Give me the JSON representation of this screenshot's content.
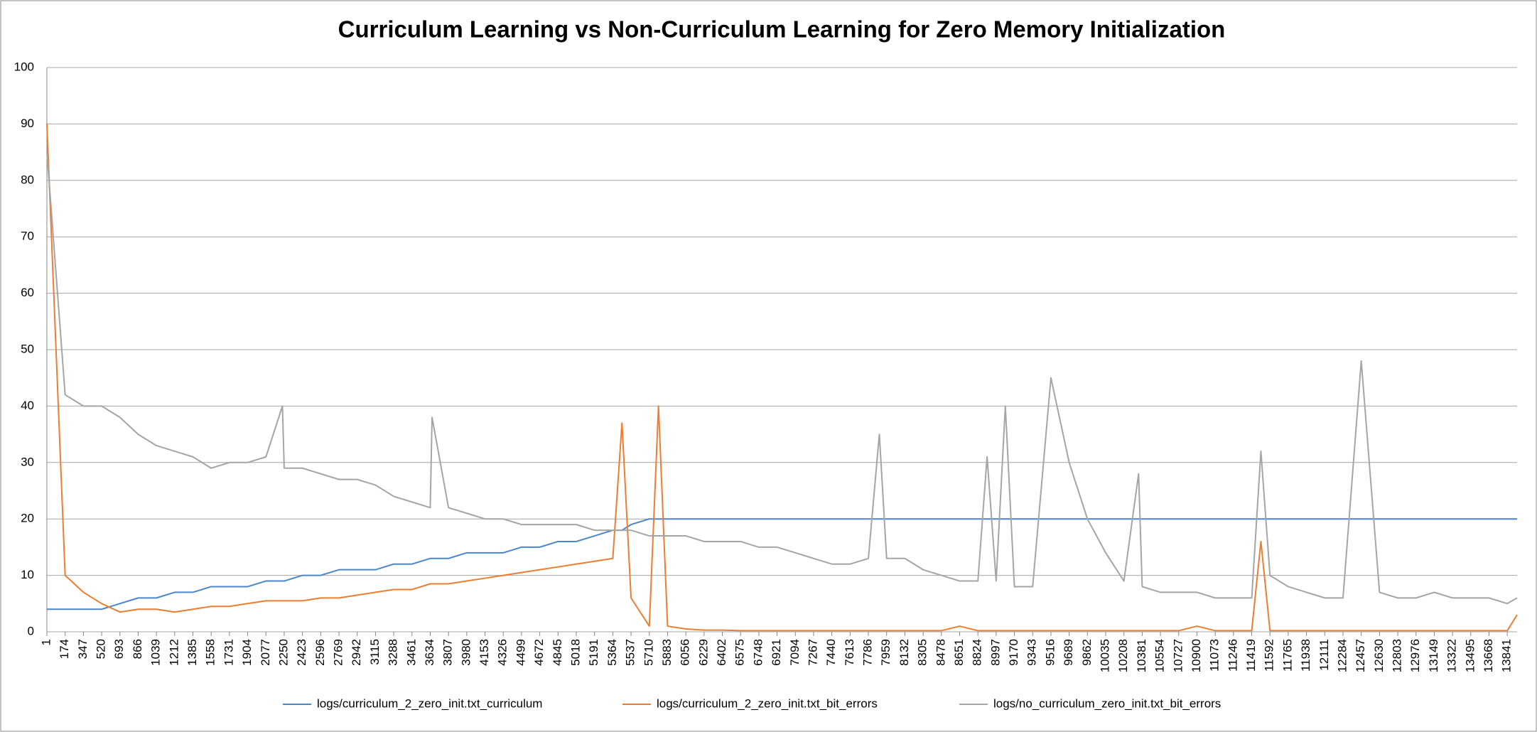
{
  "chart_data": {
    "type": "line",
    "title": "Curriculum Learning vs Non-Curriculum Learning for Zero Memory Initialization",
    "x": [
      1,
      174,
      347,
      520,
      693,
      866,
      1039,
      1212,
      1385,
      1558,
      1731,
      1904,
      2077,
      2233,
      2250,
      2423,
      2596,
      2769,
      2942,
      3115,
      3288,
      3461,
      3634,
      3651,
      3807,
      3980,
      4153,
      4326,
      4499,
      4672,
      4845,
      5018,
      5191,
      5364,
      5451,
      5537,
      5710,
      5797,
      5883,
      6056,
      6229,
      6402,
      6575,
      6748,
      6921,
      7094,
      7267,
      7440,
      7613,
      7786,
      7890,
      7959,
      8132,
      8305,
      8478,
      8651,
      8824,
      8911,
      8997,
      9084,
      9170,
      9343,
      9516,
      9689,
      9862,
      10035,
      10208,
      10347,
      10381,
      10554,
      10727,
      10900,
      11073,
      11246,
      11419,
      11506,
      11592,
      11765,
      11938,
      12111,
      12284,
      12457,
      12630,
      12803,
      12976,
      13149,
      13322,
      13495,
      13668,
      13841,
      13934
    ],
    "series": [
      {
        "name": "logs/curriculum_2_zero_init.txt_curriculum",
        "color": "#4a86c8",
        "values": [
          4,
          4,
          4,
          4,
          5,
          6,
          6,
          7,
          7,
          8,
          8,
          8,
          9,
          9,
          9,
          10,
          10,
          11,
          11,
          11,
          12,
          12,
          13,
          13,
          13,
          14,
          14,
          14,
          15,
          15,
          16,
          16,
          17,
          18,
          18,
          19,
          20,
          20,
          20,
          20,
          20,
          20,
          20,
          20,
          20,
          20,
          20,
          20,
          20,
          20,
          20,
          20,
          20,
          20,
          20,
          20,
          20,
          20,
          20,
          20,
          20,
          20,
          20,
          20,
          20,
          20,
          20,
          20,
          20,
          20,
          20,
          20,
          20,
          20,
          20,
          20,
          20,
          20,
          20,
          20,
          20,
          20,
          20,
          20,
          20,
          20,
          20,
          20,
          20,
          20,
          20
        ]
      },
      {
        "name": "logs/curriculum_2_zero_init.txt_bit_errors",
        "color": "#ed7d31",
        "values": [
          90,
          10,
          7,
          5,
          3.5,
          4,
          4,
          3.5,
          4,
          4.5,
          4.5,
          5,
          5.5,
          5.5,
          5.5,
          5.5,
          6,
          6,
          6.5,
          7,
          7.5,
          7.5,
          8.5,
          8.5,
          8.5,
          9,
          9.5,
          10,
          10.5,
          11,
          11.5,
          12,
          12.5,
          13,
          37,
          6,
          1,
          40,
          1,
          0.5,
          0.3,
          0.3,
          0.2,
          0.2,
          0.2,
          0.2,
          0.2,
          0.2,
          0.2,
          0.2,
          0.2,
          0.2,
          0.2,
          0.2,
          0.2,
          1,
          0.2,
          0.2,
          0.2,
          0.2,
          0.2,
          0.2,
          0.2,
          0.2,
          0.2,
          0.2,
          0.2,
          0.2,
          0.2,
          0.2,
          0.2,
          1,
          0.2,
          0.2,
          0.2,
          16,
          0.2,
          0.2,
          0.2,
          0.2,
          0.2,
          0.2,
          0.2,
          0.2,
          0.2,
          0.2,
          0.2,
          0.2,
          0.2,
          0.2,
          3
        ]
      },
      {
        "name": "logs/no_curriculum_zero_init.txt_bit_errors",
        "color": "#a5a5a5",
        "values": [
          85,
          42,
          40,
          40,
          38,
          35,
          33,
          32,
          31,
          29,
          30,
          30,
          31,
          40,
          29,
          29,
          28,
          27,
          27,
          26,
          24,
          23,
          22,
          38,
          22,
          21,
          20,
          20,
          19,
          19,
          19,
          19,
          18,
          18,
          18,
          18,
          17,
          17,
          17,
          17,
          16,
          16,
          16,
          15,
          15,
          14,
          13,
          12,
          12,
          13,
          35,
          13,
          13,
          11,
          10,
          9,
          9,
          31,
          9,
          40,
          8,
          8,
          45,
          30,
          20,
          14,
          9,
          28,
          8,
          7,
          7,
          7,
          6,
          6,
          6,
          32,
          10,
          8,
          7,
          6,
          6,
          48,
          7,
          6,
          6,
          7,
          6,
          6,
          6,
          5,
          6
        ]
      }
    ],
    "xlim": [
      1,
      13934
    ],
    "xticks": [
      1,
      174,
      347,
      520,
      693,
      866,
      1039,
      1212,
      1385,
      1558,
      1731,
      1904,
      2077,
      2250,
      2423,
      2596,
      2769,
      2942,
      3115,
      3288,
      3461,
      3634,
      3807,
      3980,
      4153,
      4326,
      4499,
      4672,
      4845,
      5018,
      5191,
      5364,
      5537,
      5710,
      5883,
      6056,
      6229,
      6402,
      6575,
      6748,
      6921,
      7094,
      7267,
      7440,
      7613,
      7786,
      7959,
      8132,
      8305,
      8478,
      8651,
      8824,
      8997,
      9170,
      9343,
      9516,
      9689,
      9862,
      10035,
      10208,
      10381,
      10554,
      10727,
      10900,
      11073,
      11246,
      11419,
      11592,
      11765,
      11938,
      12111,
      12284,
      12457,
      12630,
      12803,
      12976,
      13149,
      13322,
      13495,
      13668,
      13841
    ],
    "ylim": [
      0,
      100
    ],
    "yticks": [
      0,
      10,
      20,
      30,
      40,
      50,
      60,
      70,
      80,
      90,
      100
    ],
    "grid": true,
    "legend": "bottom"
  }
}
